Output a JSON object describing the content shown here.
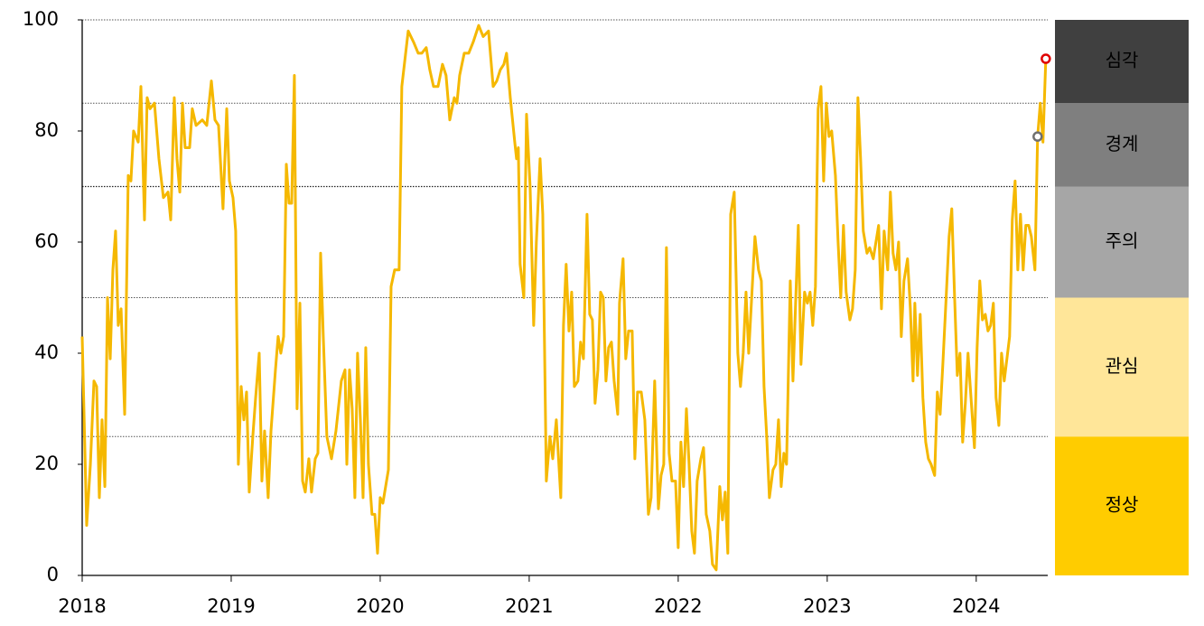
{
  "chart_data": {
    "type": "line",
    "color": "#f5b800",
    "xlim": [
      2018,
      2024.48
    ],
    "xticks": [
      2018,
      2019,
      2020,
      2021,
      2022,
      2023,
      2024
    ],
    "ylim": [
      0,
      100
    ],
    "yticks": [
      0,
      20,
      40,
      60,
      80,
      100
    ],
    "x": [
      2018.0,
      2018.03,
      2018.055,
      2018.079,
      2018.097,
      2018.115,
      2018.133,
      2018.152,
      2018.17,
      2018.188,
      2018.206,
      2018.224,
      2018.242,
      2018.261,
      2018.285,
      2018.309,
      2018.327,
      2018.345,
      2018.376,
      2018.394,
      2018.418,
      2018.436,
      2018.455,
      2018.485,
      2018.515,
      2018.545,
      2018.576,
      2018.594,
      2018.618,
      2018.636,
      2018.655,
      2018.673,
      2018.691,
      2018.721,
      2018.739,
      2018.764,
      2018.806,
      2018.836,
      2018.867,
      2018.891,
      2018.915,
      2018.945,
      2018.97,
      2018.988,
      2019.012,
      2019.03,
      2019.048,
      2019.067,
      2019.085,
      2019.103,
      2019.121,
      2019.145,
      2019.164,
      2019.188,
      2019.206,
      2019.224,
      2019.248,
      2019.267,
      2019.297,
      2019.315,
      2019.333,
      2019.352,
      2019.37,
      2019.388,
      2019.406,
      2019.424,
      2019.442,
      2019.461,
      2019.479,
      2019.497,
      2019.521,
      2019.539,
      2019.564,
      2019.582,
      2019.6,
      2019.618,
      2019.642,
      2019.673,
      2019.703,
      2019.739,
      2019.764,
      2019.776,
      2019.794,
      2019.812,
      2019.83,
      2019.848,
      2019.867,
      2019.885,
      2019.903,
      2019.921,
      2019.945,
      2019.964,
      2019.982,
      2020.0,
      2020.018,
      2020.055,
      2020.073,
      2020.097,
      2020.127,
      2020.145,
      2020.188,
      2020.224,
      2020.255,
      2020.279,
      2020.309,
      2020.333,
      2020.358,
      2020.388,
      2020.418,
      2020.442,
      2020.467,
      2020.497,
      2020.515,
      2020.533,
      2020.564,
      2020.594,
      2020.624,
      2020.661,
      2020.691,
      2020.727,
      2020.758,
      2020.782,
      2020.806,
      2020.83,
      2020.848,
      2020.873,
      2020.903,
      2020.915,
      2020.927,
      2020.939,
      2020.964,
      2020.982,
      2021.006,
      2021.03,
      2021.048,
      2021.073,
      2021.091,
      2021.115,
      2021.139,
      2021.158,
      2021.182,
      2021.212,
      2021.23,
      2021.248,
      2021.267,
      2021.285,
      2021.303,
      2021.327,
      2021.345,
      2021.364,
      2021.388,
      2021.406,
      2021.424,
      2021.442,
      2021.461,
      2021.479,
      2021.497,
      2021.515,
      2021.533,
      2021.552,
      2021.57,
      2021.594,
      2021.606,
      2021.63,
      2021.648,
      2021.667,
      2021.691,
      2021.709,
      2021.727,
      2021.752,
      2021.776,
      2021.8,
      2021.818,
      2021.842,
      2021.867,
      2021.885,
      2021.903,
      2021.921,
      2021.939,
      2021.958,
      2021.982,
      2022.0,
      2022.018,
      2022.036,
      2022.055,
      2022.073,
      2022.091,
      2022.109,
      2022.127,
      2022.152,
      2022.17,
      2022.188,
      2022.212,
      2022.23,
      2022.255,
      2022.279,
      2022.297,
      2022.315,
      2022.333,
      2022.352,
      2022.376,
      2022.4,
      2022.418,
      2022.436,
      2022.455,
      2022.473,
      2022.491,
      2022.515,
      2022.539,
      2022.558,
      2022.576,
      2022.594,
      2022.612,
      2022.636,
      2022.655,
      2022.673,
      2022.691,
      2022.709,
      2022.727,
      2022.752,
      2022.77,
      2022.788,
      2022.806,
      2022.824,
      2022.848,
      2022.867,
      2022.885,
      2022.903,
      2022.921,
      2022.939,
      2022.958,
      2022.976,
      2022.994,
      2023.012,
      2023.03,
      2023.055,
      2023.073,
      2023.091,
      2023.109,
      2023.127,
      2023.152,
      2023.17,
      2023.188,
      2023.206,
      2023.224,
      2023.242,
      2023.267,
      2023.285,
      2023.309,
      2023.327,
      2023.345,
      2023.364,
      2023.382,
      2023.406,
      2023.424,
      2023.442,
      2023.461,
      2023.479,
      2023.497,
      2023.515,
      2023.539,
      2023.558,
      2023.576,
      2023.588,
      2023.606,
      2023.624,
      2023.642,
      2023.661,
      2023.679,
      2023.697,
      2023.721,
      2023.739,
      2023.758,
      2023.776,
      2023.8,
      2023.818,
      2023.836,
      2023.855,
      2023.873,
      2023.891,
      2023.909,
      2023.927,
      2023.945,
      2023.97,
      2023.988,
      2024.006,
      2024.024,
      2024.042,
      2024.061,
      2024.079,
      2024.097,
      2024.115,
      2024.133,
      2024.152,
      2024.17,
      2024.188,
      2024.206,
      2024.224,
      2024.242,
      2024.261,
      2024.279,
      2024.297,
      2024.315,
      2024.333,
      2024.352,
      2024.37,
      2024.394,
      2024.412,
      2024.43,
      2024.448,
      2024.467
    ],
    "values": [
      43,
      9,
      20,
      35,
      34,
      14,
      28,
      16,
      50,
      39,
      55,
      62,
      45,
      48,
      29,
      72,
      71,
      80,
      78,
      88,
      64,
      86,
      84,
      85,
      75,
      68,
      69,
      64,
      86,
      75,
      69,
      85,
      77,
      77,
      84,
      81,
      82,
      81,
      89,
      82,
      81,
      66,
      84,
      71,
      68,
      62,
      20,
      34,
      28,
      33,
      15,
      25,
      32,
      40,
      17,
      26,
      14,
      26,
      37,
      43,
      40,
      43,
      74,
      67,
      67,
      90,
      30,
      49,
      17,
      15,
      21,
      15,
      21,
      22,
      58,
      43,
      25,
      21,
      26,
      35,
      37,
      20,
      37,
      30,
      14,
      40,
      28,
      14,
      41,
      20,
      11,
      11,
      4,
      14,
      13,
      19,
      52,
      55,
      55,
      88,
      98,
      96,
      94,
      94,
      95,
      91,
      88,
      88,
      92,
      90,
      82,
      86,
      85,
      90,
      94,
      94,
      96,
      99,
      97,
      98,
      88,
      89,
      91,
      92,
      94,
      86,
      78,
      75,
      77,
      56,
      50,
      83,
      70,
      45,
      60,
      75,
      65,
      17,
      25,
      21,
      28,
      14,
      45,
      56,
      44,
      51,
      34,
      35,
      42,
      39,
      65,
      47,
      46,
      31,
      37,
      51,
      50,
      35,
      41,
      42,
      35,
      29,
      49,
      57,
      39,
      44,
      44,
      21,
      33,
      33,
      28,
      11,
      14,
      35,
      12,
      18,
      20,
      59,
      22,
      17,
      17,
      5,
      24,
      16,
      30,
      20,
      8,
      4,
      17,
      21,
      23,
      11,
      8,
      2,
      1,
      16,
      10,
      15,
      4,
      65,
      69,
      40,
      34,
      40,
      51,
      40,
      49,
      61,
      55,
      53,
      34,
      25,
      14,
      19,
      20,
      28,
      16,
      22,
      20,
      53,
      35,
      49,
      63,
      38,
      51,
      49,
      51,
      45,
      52,
      84,
      88,
      71,
      85,
      79,
      80,
      72,
      60,
      50,
      63,
      51,
      46,
      48,
      55,
      86,
      75,
      62,
      58,
      59,
      57,
      60,
      63,
      48,
      62,
      55,
      69,
      58,
      55,
      60,
      43,
      53,
      57,
      48,
      35,
      49,
      36,
      47,
      32,
      24,
      21,
      20,
      18,
      33,
      29,
      38,
      51,
      61,
      66,
      50,
      36,
      40,
      24,
      31,
      40,
      30,
      23,
      41,
      53,
      46,
      47,
      44,
      45,
      49,
      32,
      27,
      40,
      35,
      39,
      43,
      64,
      71,
      55,
      65,
      55,
      63,
      63,
      61,
      55,
      79,
      85,
      78,
      93
    ],
    "markers": [
      {
        "x": 2024.467,
        "value": 93,
        "color": "#e00000"
      },
      {
        "x": 2024.412,
        "value": 79,
        "color": "#707070"
      }
    ],
    "bands": [
      {
        "label": "정상",
        "from": 0,
        "to": 25,
        "color": "#ffcc00",
        "label_color": "#222222"
      },
      {
        "label": "관심",
        "from": 25,
        "to": 50,
        "color": "#ffe699",
        "label_color": "#222222"
      },
      {
        "label": "주의",
        "from": 50,
        "to": 70,
        "color": "#a6a6a6",
        "label_color": "#222222"
      },
      {
        "label": "경계",
        "from": 70,
        "to": 85,
        "color": "#7f7f7f",
        "label_color": "#ffffff"
      },
      {
        "label": "심각",
        "from": 85,
        "to": 100,
        "color": "#404040",
        "label_color": "#ffffff"
      }
    ]
  }
}
